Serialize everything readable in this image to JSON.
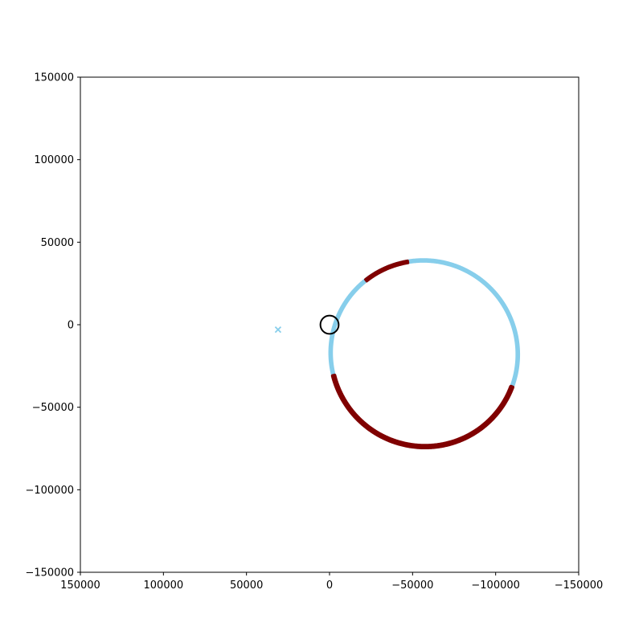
{
  "chart_data": {
    "type": "scatter",
    "title": "",
    "xlabel": "",
    "ylabel": "",
    "xlim": [
      150000,
      -150000
    ],
    "ylim": [
      -150000,
      150000
    ],
    "x_inverted": true,
    "grid": false,
    "legend": "none",
    "xticks": [
      150000,
      100000,
      50000,
      0,
      -50000,
      -100000,
      -150000
    ],
    "xtick_labels": [
      "150000",
      "100000",
      "50000",
      "0",
      "−50000",
      "−100000",
      "−150000"
    ],
    "yticks": [
      150000,
      100000,
      50000,
      0,
      -50000,
      -100000,
      -150000
    ],
    "ytick_labels": [
      "150000",
      "100000",
      "50000",
      "0",
      "−50000",
      "−100000",
      "−150000"
    ],
    "central_body": {
      "x": 0,
      "y": 0,
      "radius": 5500,
      "color": "#000000"
    },
    "orbit": {
      "color": "#87ceeb",
      "center": [
        -57000,
        -17500
      ],
      "semi_axes": [
        56000,
        56500
      ],
      "rotation_deg": -38,
      "band_width": 3000
    },
    "highlight_color": "#800000",
    "highlight_segments": [
      {
        "from": [
          -13000,
          38500
        ],
        "to": [
          -47000,
          38500
        ]
      },
      {
        "from": [
          30000,
          -39000
        ],
        "to": [
          -112000,
          -38500
        ]
      }
    ],
    "start_marker": {
      "x": 31000,
      "y": -3000,
      "symbol": "x",
      "color": "#87ceeb"
    }
  }
}
